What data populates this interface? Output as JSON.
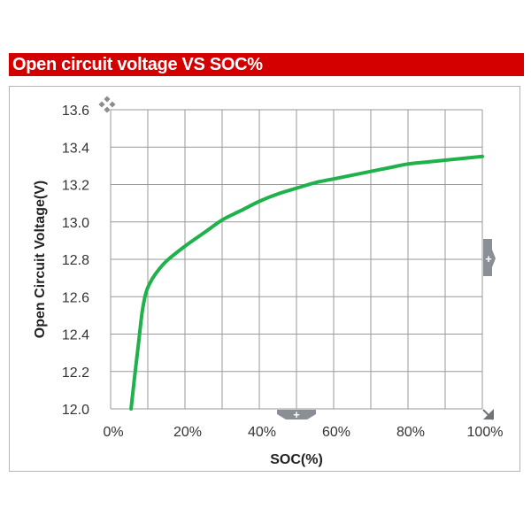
{
  "header": {
    "title": "Open circuit voltage VS SOC%"
  },
  "chart_data": {
    "type": "line",
    "title": "Open circuit voltage VS SOC%",
    "xlabel": "SOC(%)",
    "ylabel": "Open Circuit Voltage(V)",
    "xlim": [
      0,
      100
    ],
    "ylim": [
      12.0,
      13.6
    ],
    "x_ticks": [
      0,
      20,
      40,
      60,
      80,
      100
    ],
    "x_tick_labels": [
      "0%",
      "20%",
      "40%",
      "60%",
      "80%",
      "100%"
    ],
    "y_ticks": [
      12.0,
      12.2,
      12.4,
      12.6,
      12.8,
      13.0,
      13.2,
      13.4,
      13.6
    ],
    "y_tick_labels": [
      "12.0",
      "12.2",
      "12.4",
      "12.6",
      "12.8",
      "13.0",
      "13.2",
      "13.4",
      "13.6"
    ],
    "grid": true,
    "series": [
      {
        "color": "#1fb14a",
        "x": [
          5.5,
          6.5,
          7.5,
          8.5,
          9.5,
          10.5,
          12,
          15,
          20,
          25,
          30,
          35,
          40,
          45,
          50,
          55,
          60,
          65,
          70,
          75,
          80,
          85,
          90,
          95,
          100
        ],
        "y": [
          12.0,
          12.18,
          12.35,
          12.52,
          12.62,
          12.67,
          12.72,
          12.79,
          12.87,
          12.94,
          13.01,
          13.06,
          13.11,
          13.15,
          13.18,
          13.21,
          13.23,
          13.25,
          13.27,
          13.29,
          13.31,
          13.32,
          13.33,
          13.34,
          13.35
        ]
      }
    ]
  },
  "controls": {
    "pan_icon": "move-icon",
    "y_handle_icon": "plus-icon",
    "x_handle_icon": "plus-icon",
    "resize_icon": "resize-icon"
  }
}
